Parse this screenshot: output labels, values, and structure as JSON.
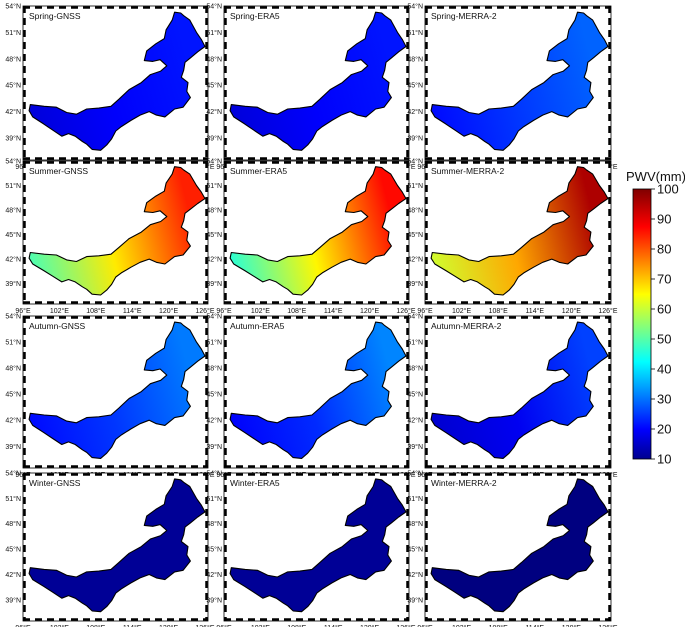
{
  "colorbar": {
    "title": "PWV(mm)",
    "ticks": [
      "100",
      "90",
      "80",
      "70",
      "60",
      "50",
      "40",
      "30",
      "20",
      "10"
    ]
  },
  "axes": {
    "x_ticks": [
      "96°E",
      "102°E",
      "108°E",
      "114°E",
      "120°E",
      "126°E"
    ],
    "y_ticks": [
      "54°N",
      "51°N",
      "48°N",
      "45°N",
      "42°N",
      "39°N"
    ]
  },
  "colormap": "jet",
  "panels": [
    {
      "title": "Spring-GNSS",
      "season": "spring",
      "source": "GNSS",
      "pwv_west": 18,
      "pwv_center": 21,
      "pwv_east": 23
    },
    {
      "title": "Spring-ERA5",
      "season": "spring",
      "source": "ERA5",
      "pwv_west": 18,
      "pwv_center": 21,
      "pwv_east": 23
    },
    {
      "title": "Spring-MERRA-2",
      "season": "spring",
      "source": "MERRA-2",
      "pwv_west": 22,
      "pwv_center": 26,
      "pwv_east": 30
    },
    {
      "title": "Summer-GNSS",
      "season": "summer",
      "source": "GNSS",
      "pwv_west": 50,
      "pwv_center": 68,
      "pwv_east": 86
    },
    {
      "title": "Summer-ERA5",
      "season": "summer",
      "source": "ERA5",
      "pwv_west": 47,
      "pwv_center": 67,
      "pwv_east": 88
    },
    {
      "title": "Summer-MERRA-2",
      "season": "summer",
      "source": "MERRA-2",
      "pwv_west": 62,
      "pwv_center": 74,
      "pwv_east": 96
    },
    {
      "title": "Autumn-GNSS",
      "season": "autumn",
      "source": "GNSS",
      "pwv_west": 22,
      "pwv_center": 26,
      "pwv_east": 32
    },
    {
      "title": "Autumn-ERA5",
      "season": "autumn",
      "source": "ERA5",
      "pwv_west": 21,
      "pwv_center": 25,
      "pwv_east": 33
    },
    {
      "title": "Autumn-MERRA-2",
      "season": "autumn",
      "source": "MERRA-2",
      "pwv_west": 17,
      "pwv_center": 20,
      "pwv_east": 27
    },
    {
      "title": "Winter-GNSS",
      "season": "winter",
      "source": "GNSS",
      "pwv_west": 12,
      "pwv_center": 12,
      "pwv_east": 12
    },
    {
      "title": "Winter-ERA5",
      "season": "winter",
      "source": "ERA5",
      "pwv_west": 12,
      "pwv_center": 12,
      "pwv_east": 12
    },
    {
      "title": "Winter-MERRA-2",
      "season": "winter",
      "source": "MERRA-2",
      "pwv_west": 7,
      "pwv_center": 8,
      "pwv_east": 9
    }
  ]
}
